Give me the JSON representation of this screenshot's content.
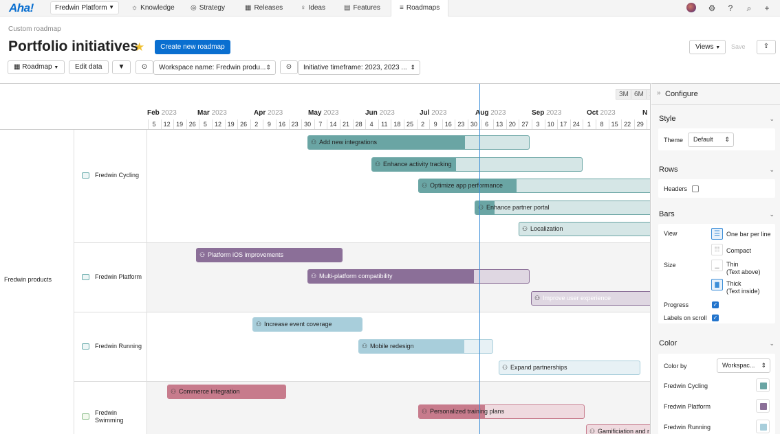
{
  "topnav": {
    "logo": "Aha!",
    "workspace": "Fredwin Platform",
    "items": [
      {
        "label": "Knowledge",
        "icon": "lightbulb-icon"
      },
      {
        "label": "Strategy",
        "icon": "target-icon"
      },
      {
        "label": "Releases",
        "icon": "calendar-icon"
      },
      {
        "label": "Ideas",
        "icon": "idea-icon"
      },
      {
        "label": "Features",
        "icon": "features-icon"
      },
      {
        "label": "Roadmaps",
        "icon": "roadmap-icon"
      }
    ]
  },
  "page": {
    "breadcrumb": "Custom roadmap",
    "title": "Portfolio initiatives",
    "create_button": "Create new roadmap",
    "views_button": "Views",
    "save_button": "Save"
  },
  "toolbar": {
    "roadmap": "Roadmap",
    "edit_data": "Edit data",
    "filter1": "Workspace name: Fredwin produ...",
    "filter2": "Initiative timeframe: 2023, 2023 ..."
  },
  "timeline": {
    "zoom": [
      "3M",
      "6M",
      "1"
    ],
    "months": [
      {
        "name": "Feb",
        "year": "2023"
      },
      {
        "name": "Mar",
        "year": "2023"
      },
      {
        "name": "Apr",
        "year": "2023"
      },
      {
        "name": "May",
        "year": "2023"
      },
      {
        "name": "Jun",
        "year": "2023"
      },
      {
        "name": "Jul",
        "year": "2023"
      },
      {
        "name": "Aug",
        "year": "2023"
      },
      {
        "name": "Sep",
        "year": "2023"
      },
      {
        "name": "Oct",
        "year": "2023"
      },
      {
        "name": "N",
        "year": ""
      }
    ],
    "weeks": [
      "5",
      "12",
      "19",
      "26",
      "5",
      "12",
      "19",
      "26",
      "2",
      "9",
      "16",
      "23",
      "30",
      "7",
      "14",
      "21",
      "28",
      "4",
      "11",
      "18",
      "25",
      "2",
      "9",
      "16",
      "23",
      "30",
      "6",
      "13",
      "20",
      "27",
      "3",
      "10",
      "17",
      "24",
      "1",
      "8",
      "15",
      "22",
      "29",
      "5"
    ]
  },
  "rows": {
    "root": "Fredwin products",
    "groups": [
      "Fredwin Cycling",
      "Fredwin Platform",
      "Fredwin Running",
      "Fredwin Swimming"
    ]
  },
  "bars": [
    {
      "label": "Add new integrations",
      "group": "Fredwin Cycling",
      "color": "#6aa5a4",
      "progress": 0.71
    },
    {
      "label": "Enhance activity tracking",
      "group": "Fredwin Cycling",
      "color": "#6aa5a4",
      "progress": 0.4
    },
    {
      "label": "Optimize app performance",
      "group": "Fredwin Cycling",
      "color": "#6aa5a4",
      "progress": 0.42
    },
    {
      "label": "Enhance partner portal",
      "group": "Fredwin Cycling",
      "color": "#6aa5a4",
      "progress": 0.11
    },
    {
      "label": "Localization",
      "group": "Fredwin Cycling",
      "color": "#6aa5a4",
      "progress": 0
    },
    {
      "label": "Platform iOS improvements",
      "group": "Fredwin Platform",
      "color": "#8b6f98",
      "progress": 1
    },
    {
      "label": "Multi-platform compatibility",
      "group": "Fredwin Platform",
      "color": "#8b6f98",
      "progress": 0.75
    },
    {
      "label": "Improve user experience",
      "group": "Fredwin Platform",
      "color": "#8b6f98",
      "progress": 0
    },
    {
      "label": "Increase event coverage",
      "group": "Fredwin Running",
      "color": "#a8cedb",
      "progress": 1
    },
    {
      "label": "Mobile redesign",
      "group": "Fredwin Running",
      "color": "#a8cedb",
      "progress": 0.79
    },
    {
      "label": "Expand partnerships",
      "group": "Fredwin Running",
      "color": "#a8cedb",
      "progress": 0
    },
    {
      "label": "Commerce integration",
      "group": "Fredwin Swimming",
      "color": "#c77b8c",
      "progress": 1
    },
    {
      "label": "Personalized training plans",
      "group": "Fredwin Swimming",
      "color": "#c77b8c",
      "progress": 0.4
    },
    {
      "label": "Gamificiation and r",
      "group": "Fredwin Swimming",
      "color": "#c77b8c",
      "progress": 0
    }
  ],
  "configure": {
    "title": "Configure",
    "style": {
      "heading": "Style",
      "theme_label": "Theme",
      "theme_value": "Default"
    },
    "rows": {
      "heading": "Rows",
      "headers_label": "Headers",
      "headers_checked": false
    },
    "bars": {
      "heading": "Bars",
      "view_label": "View",
      "view_options": [
        "One bar per line",
        "Compact"
      ],
      "size_label": "Size",
      "size_options": [
        {
          "line1": "Thin",
          "line2": "(Text above)"
        },
        {
          "line1": "Thick",
          "line2": "(Text inside)"
        }
      ],
      "progress_label": "Progress",
      "progress_checked": true,
      "labels_label": "Labels on scroll",
      "labels_checked": true
    },
    "color": {
      "heading": "Color",
      "color_by_label": "Color by",
      "color_by_value": "Workspac...",
      "legend": [
        {
          "label": "Fredwin Cycling",
          "color": "#6aa5a4"
        },
        {
          "label": "Fredwin Platform",
          "color": "#8b6f98"
        },
        {
          "label": "Fredwin Running",
          "color": "#a8cedb"
        }
      ]
    }
  }
}
